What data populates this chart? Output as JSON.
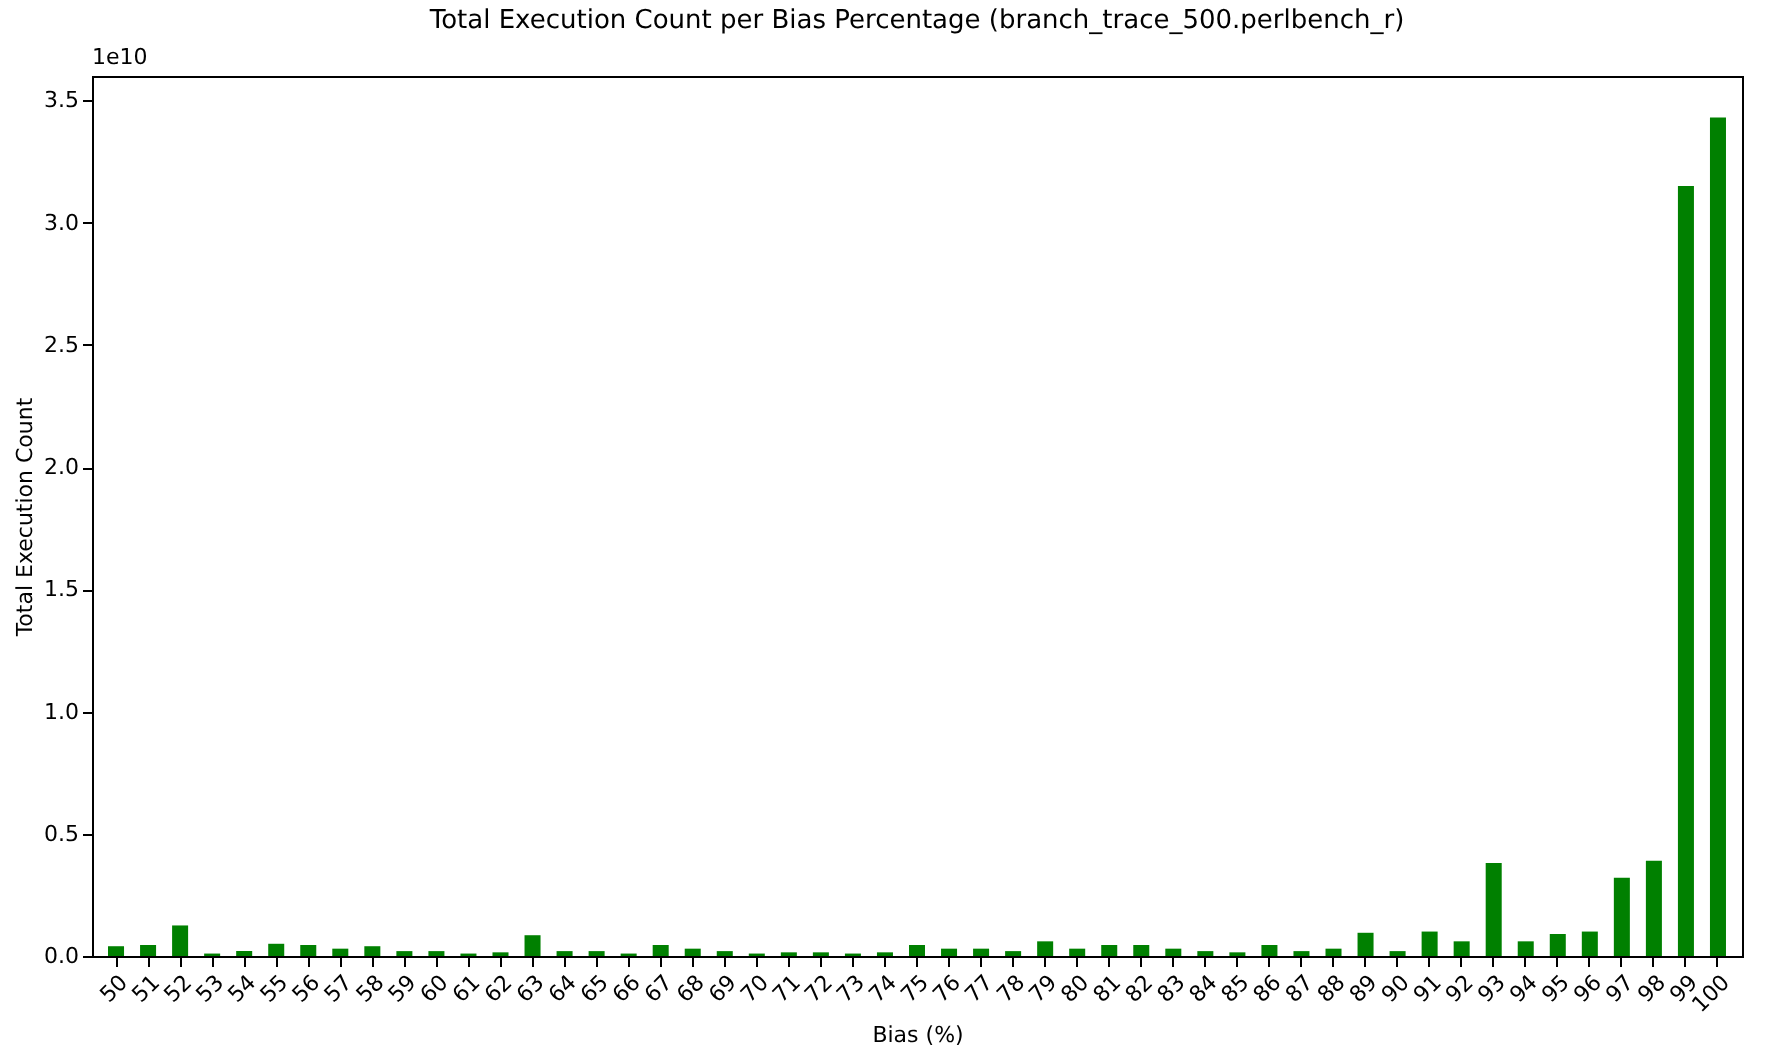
{
  "chart_data": {
    "type": "bar",
    "title": "Total Execution Count per Bias Percentage (branch_trace_500.perlbench_r)",
    "xlabel": "Bias (%)",
    "ylabel": "Total Execution Count",
    "annotations": [
      "1e10"
    ],
    "categories": [
      "50",
      "51",
      "52",
      "53",
      "54",
      "55",
      "56",
      "57",
      "58",
      "59",
      "60",
      "61",
      "62",
      "63",
      "64",
      "65",
      "66",
      "67",
      "68",
      "69",
      "70",
      "71",
      "72",
      "73",
      "74",
      "75",
      "76",
      "77",
      "78",
      "79",
      "80",
      "81",
      "82",
      "83",
      "84",
      "85",
      "86",
      "87",
      "88",
      "89",
      "90",
      "91",
      "92",
      "93",
      "94",
      "95",
      "96",
      "97",
      "98",
      "99",
      "100"
    ],
    "values": [
      0.04,
      0.045,
      0.125,
      0.01,
      0.02,
      0.05,
      0.045,
      0.03,
      0.04,
      0.02,
      0.02,
      0.01,
      0.015,
      0.085,
      0.02,
      0.02,
      0.01,
      0.045,
      0.03,
      0.02,
      0.01,
      0.015,
      0.015,
      0.01,
      0.015,
      0.045,
      0.03,
      0.03,
      0.02,
      0.06,
      0.03,
      0.045,
      0.045,
      0.03,
      0.02,
      0.015,
      0.045,
      0.02,
      0.03,
      0.095,
      0.02,
      0.1,
      0.06,
      0.38,
      0.06,
      0.09,
      0.1,
      0.32,
      0.39,
      3.15,
      3.43
    ],
    "color": "#008000",
    "ylim": [
      0,
      3.6
    ],
    "yticks": [
      {
        "value": 0,
        "label": "0.0"
      },
      0.5,
      {
        "value": 1,
        "label": "1.0"
      },
      1.5,
      {
        "value": 2,
        "label": "2.0"
      },
      2.5,
      {
        "value": 3,
        "label": "3.0"
      },
      3.5
    ]
  }
}
